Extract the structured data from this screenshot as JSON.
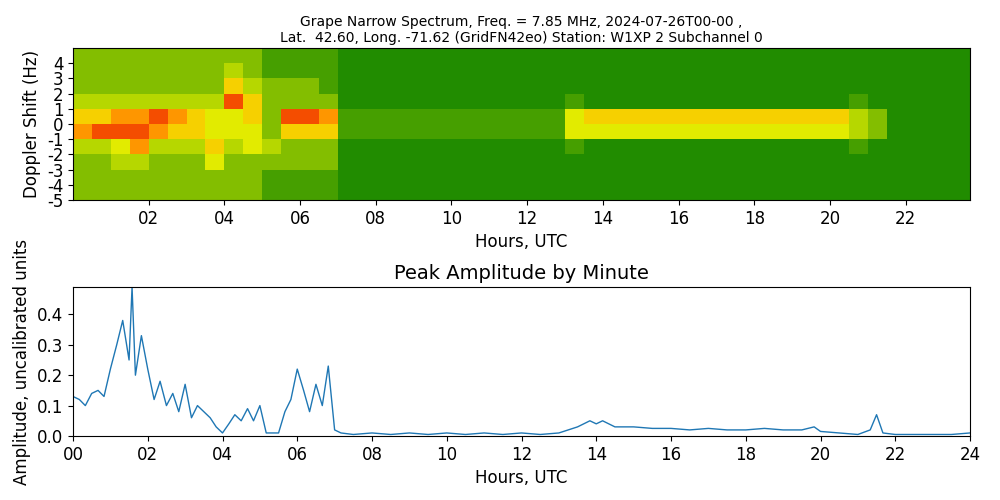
{
  "chart_data": [
    {
      "type": "heatmap",
      "title": "Grape Narrow Spectrum, Freq. = 7.85 MHz, 2024-07-26T00-00 ,\nLat.  42.60, Long. -71.62 (GridFN42eo) Station: W1XP 2 Subchannel 0",
      "x_label": "Hours, UTC",
      "y_label": "Doppler Shift (Hz)",
      "xlim": [
        0,
        23.7
      ],
      "ylim": [
        -5,
        5
      ],
      "xticks": [
        {
          "value": 2,
          "label": "02"
        },
        {
          "value": 4,
          "label": "04"
        },
        {
          "value": 6,
          "label": "06"
        },
        {
          "value": 8,
          "label": "08"
        },
        {
          "value": 10,
          "label": "10"
        },
        {
          "value": 12,
          "label": "12"
        },
        {
          "value": 14,
          "label": "14"
        },
        {
          "value": 16,
          "label": "16"
        },
        {
          "value": 18,
          "label": "18"
        },
        {
          "value": 20,
          "label": "20"
        },
        {
          "value": 22,
          "label": "22"
        }
      ],
      "yticks": [
        -5,
        -4,
        -3,
        -2,
        -1,
        0,
        1,
        2,
        3,
        4
      ],
      "x_edges": [
        0,
        0.5,
        1,
        1.5,
        2,
        2.5,
        3,
        3.5,
        4,
        4.5,
        5,
        5.5,
        6,
        6.5,
        7,
        7.5,
        8,
        8.5,
        9,
        9.5,
        10,
        10.5,
        11,
        11.5,
        12,
        12.5,
        13,
        13.5,
        14,
        14.5,
        15,
        15.5,
        16,
        16.5,
        17,
        17.5,
        18,
        18.5,
        19,
        19.5,
        20,
        20.5,
        21,
        21.5,
        22,
        22.5,
        23,
        23.5,
        24
      ],
      "y_edges": [
        -5,
        -4,
        -3,
        -2,
        -1,
        0,
        1,
        2,
        3,
        4,
        5
      ],
      "value_range": [
        0,
        9
      ],
      "cells": [
        [
          3,
          3,
          3,
          3,
          3,
          3,
          3,
          3,
          3,
          3,
          2,
          2,
          2,
          2,
          1,
          1,
          1,
          1,
          1,
          1,
          1,
          1,
          1,
          1,
          1,
          1,
          1,
          1,
          1,
          1,
          1,
          1,
          1,
          1,
          1,
          1,
          1,
          1,
          1,
          1,
          1,
          1,
          1,
          1,
          1,
          1,
          1,
          1
        ],
        [
          3,
          3,
          3,
          3,
          3,
          3,
          3,
          3,
          3,
          3,
          2,
          2,
          2,
          2,
          1,
          1,
          1,
          1,
          1,
          1,
          1,
          1,
          1,
          1,
          1,
          1,
          1,
          1,
          1,
          1,
          1,
          1,
          1,
          1,
          1,
          1,
          1,
          1,
          1,
          1,
          1,
          1,
          1,
          1,
          1,
          1,
          1,
          1
        ],
        [
          3,
          3,
          4,
          4,
          3,
          3,
          3,
          5,
          3,
          3,
          3,
          3,
          3,
          3,
          1,
          1,
          1,
          1,
          1,
          1,
          1,
          1,
          1,
          1,
          1,
          1,
          1,
          1,
          1,
          1,
          1,
          1,
          1,
          1,
          1,
          1,
          1,
          1,
          1,
          1,
          1,
          1,
          1,
          1,
          1,
          1,
          1,
          1
        ],
        [
          4,
          4,
          5,
          7,
          4,
          4,
          4,
          6,
          4,
          5,
          4,
          3,
          3,
          3,
          1,
          1,
          1,
          1,
          1,
          1,
          1,
          1,
          1,
          1,
          1,
          1,
          2,
          1,
          1,
          1,
          1,
          1,
          1,
          1,
          1,
          1,
          1,
          1,
          1,
          1,
          1,
          2,
          1,
          1,
          1,
          1,
          1,
          1
        ],
        [
          7,
          8,
          8,
          8,
          7,
          6,
          6,
          5,
          5,
          5,
          3,
          6,
          6,
          6,
          2,
          2,
          2,
          2,
          2,
          2,
          2,
          2,
          2,
          2,
          2,
          2,
          5,
          5,
          5,
          5,
          5,
          5,
          5,
          5,
          5,
          5,
          5,
          5,
          5,
          5,
          5,
          4,
          3,
          1,
          1,
          1,
          1,
          1
        ],
        [
          6,
          6,
          7,
          7,
          8,
          7,
          6,
          5,
          5,
          6,
          3,
          8,
          8,
          7,
          2,
          2,
          2,
          2,
          2,
          2,
          2,
          2,
          2,
          2,
          2,
          2,
          5,
          6,
          6,
          6,
          6,
          6,
          6,
          6,
          6,
          6,
          6,
          6,
          6,
          6,
          6,
          4,
          3,
          1,
          1,
          1,
          1,
          1
        ],
        [
          4,
          4,
          4,
          4,
          4,
          4,
          4,
          4,
          8,
          6,
          3,
          3,
          3,
          3,
          1,
          1,
          1,
          1,
          1,
          1,
          1,
          1,
          1,
          1,
          1,
          1,
          2,
          1,
          1,
          1,
          1,
          1,
          1,
          1,
          1,
          1,
          1,
          1,
          1,
          1,
          1,
          2,
          1,
          1,
          1,
          1,
          1,
          1
        ],
        [
          3,
          3,
          3,
          3,
          3,
          3,
          3,
          3,
          6,
          4,
          3,
          3,
          3,
          2,
          1,
          1,
          1,
          1,
          1,
          1,
          1,
          1,
          1,
          1,
          1,
          1,
          1,
          1,
          1,
          1,
          1,
          1,
          1,
          1,
          1,
          1,
          1,
          1,
          1,
          1,
          1,
          1,
          1,
          1,
          1,
          1,
          1,
          1
        ],
        [
          3,
          3,
          3,
          3,
          3,
          3,
          3,
          3,
          4,
          3,
          2,
          2,
          2,
          2,
          1,
          1,
          1,
          1,
          1,
          1,
          1,
          1,
          1,
          1,
          1,
          1,
          1,
          1,
          1,
          1,
          1,
          1,
          1,
          1,
          1,
          1,
          1,
          1,
          1,
          1,
          1,
          1,
          1,
          1,
          1,
          1,
          1,
          1
        ],
        [
          3,
          3,
          3,
          3,
          3,
          3,
          3,
          3,
          3,
          3,
          2,
          2,
          2,
          2,
          1,
          1,
          1,
          1,
          1,
          1,
          1,
          1,
          1,
          1,
          1,
          1,
          1,
          1,
          1,
          1,
          1,
          1,
          1,
          1,
          1,
          1,
          1,
          1,
          1,
          1,
          1,
          1,
          1,
          1,
          1,
          1,
          1,
          1
        ]
      ]
    },
    {
      "type": "line",
      "title": "Peak Amplitude by Minute",
      "x_label": "Hours, UTC",
      "y_label": "Amplitude, uncalibrated units",
      "color": "#1f77b4",
      "xlim": [
        0,
        24
      ],
      "ylim": [
        0,
        0.49
      ],
      "xticks": [
        {
          "value": 0,
          "label": "00"
        },
        {
          "value": 2,
          "label": "02"
        },
        {
          "value": 4,
          "label": "04"
        },
        {
          "value": 6,
          "label": "06"
        },
        {
          "value": 8,
          "label": "08"
        },
        {
          "value": 10,
          "label": "10"
        },
        {
          "value": 12,
          "label": "12"
        },
        {
          "value": 14,
          "label": "14"
        },
        {
          "value": 16,
          "label": "16"
        },
        {
          "value": 18,
          "label": "18"
        },
        {
          "value": 20,
          "label": "20"
        },
        {
          "value": 22,
          "label": "22"
        },
        {
          "value": 24,
          "label": "24"
        }
      ],
      "yticks": [
        {
          "value": 0,
          "label": "0.0"
        },
        0.1,
        0.2,
        0.3,
        0.4
      ],
      "x": [
        0,
        0.17,
        0.33,
        0.5,
        0.67,
        0.83,
        1,
        1.17,
        1.33,
        1.5,
        1.58,
        1.67,
        1.83,
        2,
        2.17,
        2.33,
        2.5,
        2.67,
        2.83,
        3,
        3.17,
        3.33,
        3.5,
        3.67,
        3.83,
        4,
        4.17,
        4.33,
        4.5,
        4.67,
        4.83,
        5,
        5.17,
        5.33,
        5.5,
        5.67,
        5.83,
        6,
        6.17,
        6.33,
        6.5,
        6.67,
        6.83,
        7,
        7.17,
        7.5,
        8,
        8.5,
        9,
        9.5,
        10,
        10.5,
        11,
        11.5,
        12,
        12.5,
        13,
        13.5,
        13.83,
        14,
        14.17,
        14.5,
        15,
        15.5,
        16,
        16.5,
        17,
        17.5,
        18,
        18.5,
        19,
        19.5,
        19.83,
        20,
        20.5,
        21,
        21.33,
        21.5,
        21.67,
        22,
        22.5,
        23,
        23.5,
        24
      ],
      "values": [
        0.13,
        0.12,
        0.1,
        0.14,
        0.15,
        0.13,
        0.22,
        0.3,
        0.38,
        0.25,
        0.49,
        0.2,
        0.33,
        0.22,
        0.12,
        0.18,
        0.1,
        0.14,
        0.08,
        0.17,
        0.06,
        0.1,
        0.08,
        0.06,
        0.03,
        0.01,
        0.04,
        0.07,
        0.05,
        0.09,
        0.05,
        0.1,
        0.01,
        0.01,
        0.01,
        0.08,
        0.12,
        0.22,
        0.15,
        0.08,
        0.17,
        0.1,
        0.23,
        0.02,
        0.01,
        0.005,
        0.01,
        0.005,
        0.01,
        0.005,
        0.01,
        0.005,
        0.01,
        0.005,
        0.01,
        0.005,
        0.01,
        0.03,
        0.05,
        0.04,
        0.05,
        0.03,
        0.03,
        0.025,
        0.025,
        0.02,
        0.025,
        0.02,
        0.02,
        0.025,
        0.02,
        0.02,
        0.03,
        0.015,
        0.01,
        0.005,
        0.02,
        0.07,
        0.01,
        0.005,
        0.005,
        0.005,
        0.005,
        0.01
      ]
    }
  ]
}
